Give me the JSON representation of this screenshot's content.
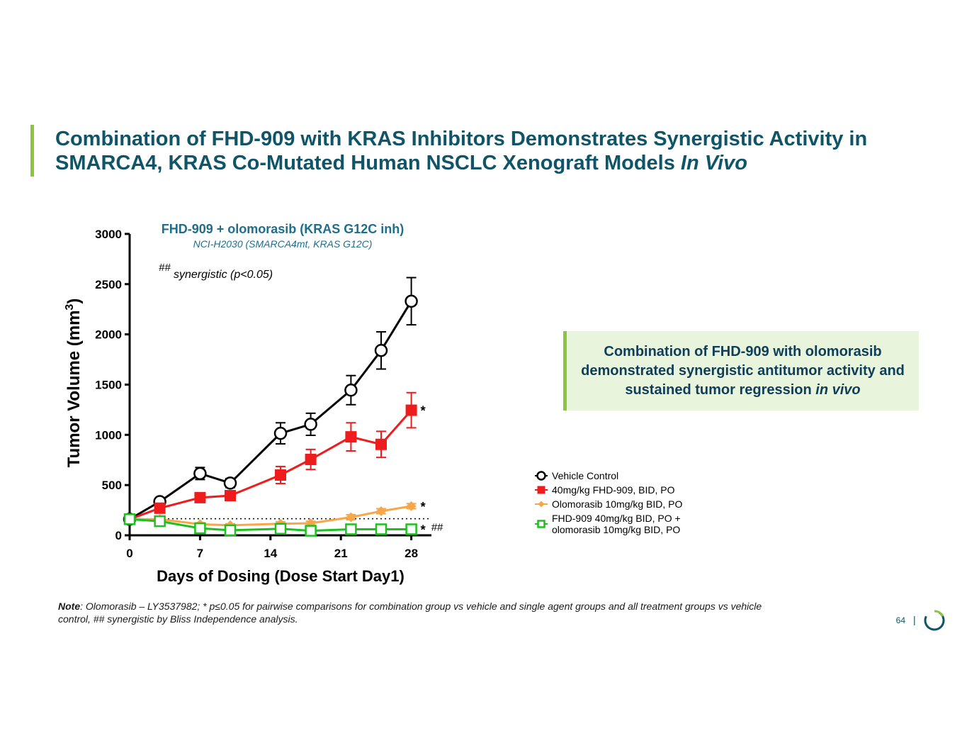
{
  "slide": {
    "title_line1": "Combination of FHD-909 with KRAS Inhibitors Demonstrates Synergistic Activity in",
    "title_line2": "SMARCA4, KRAS Co-Mutated Human NSCLC Xenograft Models ",
    "title_italic": "In Vivo",
    "callout_text": "Combination of FHD-909 with olomorasib demonstrated synergistic antitumor activity and sustained tumor regression ",
    "callout_italic": "in vivo",
    "note_label": "Note",
    "note_text": ": Olomorasib – LY3537982; * p≤0.05 for pairwise comparisons for combination group vs vehicle and single agent groups and all treatment groups vs vehicle control, ## synergistic by Bliss Independence analysis.",
    "page_number": "64",
    "page_separator": "|",
    "accent_color": "#8cc63f",
    "title_color": "#0f5467"
  },
  "chart_data": {
    "type": "line",
    "title": "FHD-909 + olomorasib (KRAS G12C inh)",
    "subtitle": "NCI-H2030 (SMARCA4mt, KRAS G12C)",
    "annotation_prefix": "##",
    "annotation_text": "synergistic (p<0.05)",
    "xlabel": "Days of Dosing (Dose Start Day1)",
    "ylabel": "Tumor Volume (mm",
    "ylabel_sup": "3",
    "ylabel_suffix": ")",
    "xlim": [
      0,
      30
    ],
    "ylim": [
      0,
      3000
    ],
    "xticks": [
      0,
      7,
      14,
      21,
      28
    ],
    "yticks": [
      0,
      500,
      1000,
      1500,
      2000,
      2500,
      3000
    ],
    "baseline_reference": 165,
    "series": [
      {
        "name": "Vehicle Control",
        "color": "#000000",
        "marker": "circle-open",
        "x": [
          0,
          3,
          7,
          10,
          15,
          18,
          22,
          25,
          28
        ],
        "y": [
          160,
          335,
          615,
          520,
          1015,
          1105,
          1445,
          1840,
          2330
        ],
        "err": [
          25,
          35,
          60,
          45,
          105,
          110,
          145,
          185,
          235
        ],
        "end_label": ""
      },
      {
        "name": "40mg/kg FHD-909, BID, PO",
        "color": "#ee1c1c",
        "marker": "square-filled",
        "x": [
          0,
          3,
          7,
          10,
          15,
          18,
          22,
          25,
          28
        ],
        "y": [
          160,
          270,
          375,
          395,
          600,
          755,
          980,
          905,
          1245
        ],
        "err": [
          20,
          35,
          40,
          45,
          85,
          100,
          140,
          130,
          175
        ],
        "end_label": "*"
      },
      {
        "name": "Olomorasib 10mg/kg BID, PO",
        "color": "#f7a74a",
        "marker": "diamond-filled",
        "x": [
          0,
          3,
          7,
          10,
          15,
          18,
          22,
          25,
          28
        ],
        "y": [
          160,
          160,
          110,
          100,
          115,
          120,
          180,
          240,
          290
        ],
        "err": [
          15,
          20,
          15,
          15,
          20,
          20,
          25,
          25,
          25
        ],
        "end_label": "*"
      },
      {
        "name": "FHD-909 40mg/kg BID, PO + olomorasib 10mg/kg BID, PO",
        "color": "#1fbf1f",
        "marker": "square-open",
        "x": [
          0,
          3,
          7,
          10,
          15,
          18,
          22,
          25,
          28
        ],
        "y": [
          160,
          140,
          70,
          50,
          65,
          45,
          60,
          60,
          60
        ],
        "err": [
          15,
          15,
          10,
          10,
          10,
          10,
          10,
          10,
          10
        ],
        "end_label": "* ##"
      }
    ],
    "legend": [
      {
        "label": "Vehicle Control"
      },
      {
        "label": "40mg/kg FHD-909, BID, PO"
      },
      {
        "label": "Olomorasib 10mg/kg BID, PO"
      },
      {
        "label": "FHD-909 40mg/kg BID, PO +",
        "label2": "olomorasib 10mg/kg BID, PO"
      }
    ]
  }
}
